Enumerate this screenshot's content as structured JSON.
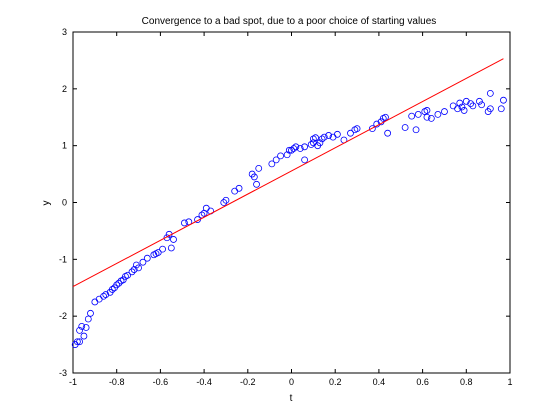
{
  "chart_data": {
    "type": "scatter",
    "title": "Convergence to a bad spot, due to a poor choice of starting values",
    "xlabel": "t",
    "ylabel": "y",
    "xlim": [
      -1,
      1
    ],
    "ylim": [
      -3,
      3
    ],
    "xticks": [
      -1,
      -0.8,
      -0.6,
      -0.4,
      -0.2,
      0,
      0.2,
      0.4,
      0.6,
      0.8,
      1
    ],
    "xtick_labels": [
      "-1",
      "-0.8",
      "-0.6",
      "-0.4",
      "-0.2",
      "0",
      "0.2",
      "0.4",
      "0.6",
      "0.8",
      "1"
    ],
    "yticks": [
      -3,
      -2,
      -1,
      0,
      1,
      2,
      3
    ],
    "ytick_labels": [
      "-3",
      "-2",
      "-1",
      "0",
      "1",
      "2",
      "3"
    ],
    "grid": false,
    "colors": {
      "points": "#0000ff",
      "fit_line": "#ff0000",
      "axes": "#000000"
    },
    "series": [
      {
        "type": "scatter",
        "marker": "circle",
        "x": [
          -0.99,
          -0.98,
          -0.97,
          -0.97,
          -0.96,
          -0.95,
          -0.94,
          -0.93,
          -0.92,
          -0.9,
          -0.88,
          -0.86,
          -0.85,
          -0.83,
          -0.82,
          -0.81,
          -0.8,
          -0.79,
          -0.78,
          -0.77,
          -0.76,
          -0.75,
          -0.73,
          -0.72,
          -0.71,
          -0.7,
          -0.68,
          -0.66,
          -0.63,
          -0.62,
          -0.61,
          -0.59,
          -0.57,
          -0.56,
          -0.55,
          -0.54,
          -0.49,
          -0.47,
          -0.43,
          -0.41,
          -0.4,
          -0.39,
          -0.37,
          -0.31,
          -0.3,
          -0.26,
          -0.24,
          -0.18,
          -0.17,
          -0.16,
          -0.15,
          -0.09,
          -0.07,
          -0.05,
          -0.02,
          -0.01,
          0.0,
          0.01,
          0.02,
          0.04,
          0.06,
          0.06,
          0.09,
          0.1,
          0.1,
          0.11,
          0.12,
          0.13,
          0.14,
          0.15,
          0.17,
          0.19,
          0.21,
          0.24,
          0.27,
          0.29,
          0.3,
          0.37,
          0.39,
          0.41,
          0.42,
          0.43,
          0.44,
          0.52,
          0.55,
          0.57,
          0.58,
          0.61,
          0.62,
          0.62,
          0.64,
          0.67,
          0.7,
          0.74,
          0.76,
          0.77,
          0.78,
          0.79,
          0.8,
          0.82,
          0.83,
          0.86,
          0.87,
          0.9,
          0.91,
          0.91,
          0.96,
          0.97
        ],
        "y": [
          -2.5,
          -2.45,
          -2.25,
          -2.45,
          -2.18,
          -2.35,
          -2.2,
          -2.05,
          -1.95,
          -1.75,
          -1.7,
          -1.65,
          -1.62,
          -1.58,
          -1.53,
          -1.5,
          -1.45,
          -1.42,
          -1.38,
          -1.36,
          -1.3,
          -1.28,
          -1.22,
          -1.18,
          -1.1,
          -1.15,
          -1.05,
          -0.98,
          -0.92,
          -0.9,
          -0.88,
          -0.82,
          -0.62,
          -0.56,
          -0.8,
          -0.65,
          -0.36,
          -0.34,
          -0.3,
          -0.22,
          -0.19,
          -0.1,
          -0.15,
          0.0,
          0.04,
          0.2,
          0.25,
          0.5,
          0.45,
          0.32,
          0.6,
          0.68,
          0.75,
          0.82,
          0.84,
          0.92,
          0.92,
          0.95,
          0.98,
          0.95,
          0.75,
          0.98,
          1.02,
          1.05,
          1.12,
          1.14,
          1.0,
          1.05,
          1.12,
          1.15,
          1.18,
          1.15,
          1.2,
          1.1,
          1.22,
          1.28,
          1.3,
          1.3,
          1.38,
          1.42,
          1.48,
          1.5,
          1.22,
          1.32,
          1.52,
          1.28,
          1.55,
          1.6,
          1.62,
          1.5,
          1.48,
          1.55,
          1.6,
          1.7,
          1.65,
          1.75,
          1.68,
          1.62,
          1.78,
          1.74,
          1.7,
          1.78,
          1.72,
          1.6,
          1.65,
          1.92,
          1.65,
          1.8
        ],
        "name": ""
      },
      {
        "type": "line",
        "x": [
          -1.0,
          0.97
        ],
        "y": [
          -1.48,
          2.53
        ],
        "name": ""
      }
    ]
  }
}
